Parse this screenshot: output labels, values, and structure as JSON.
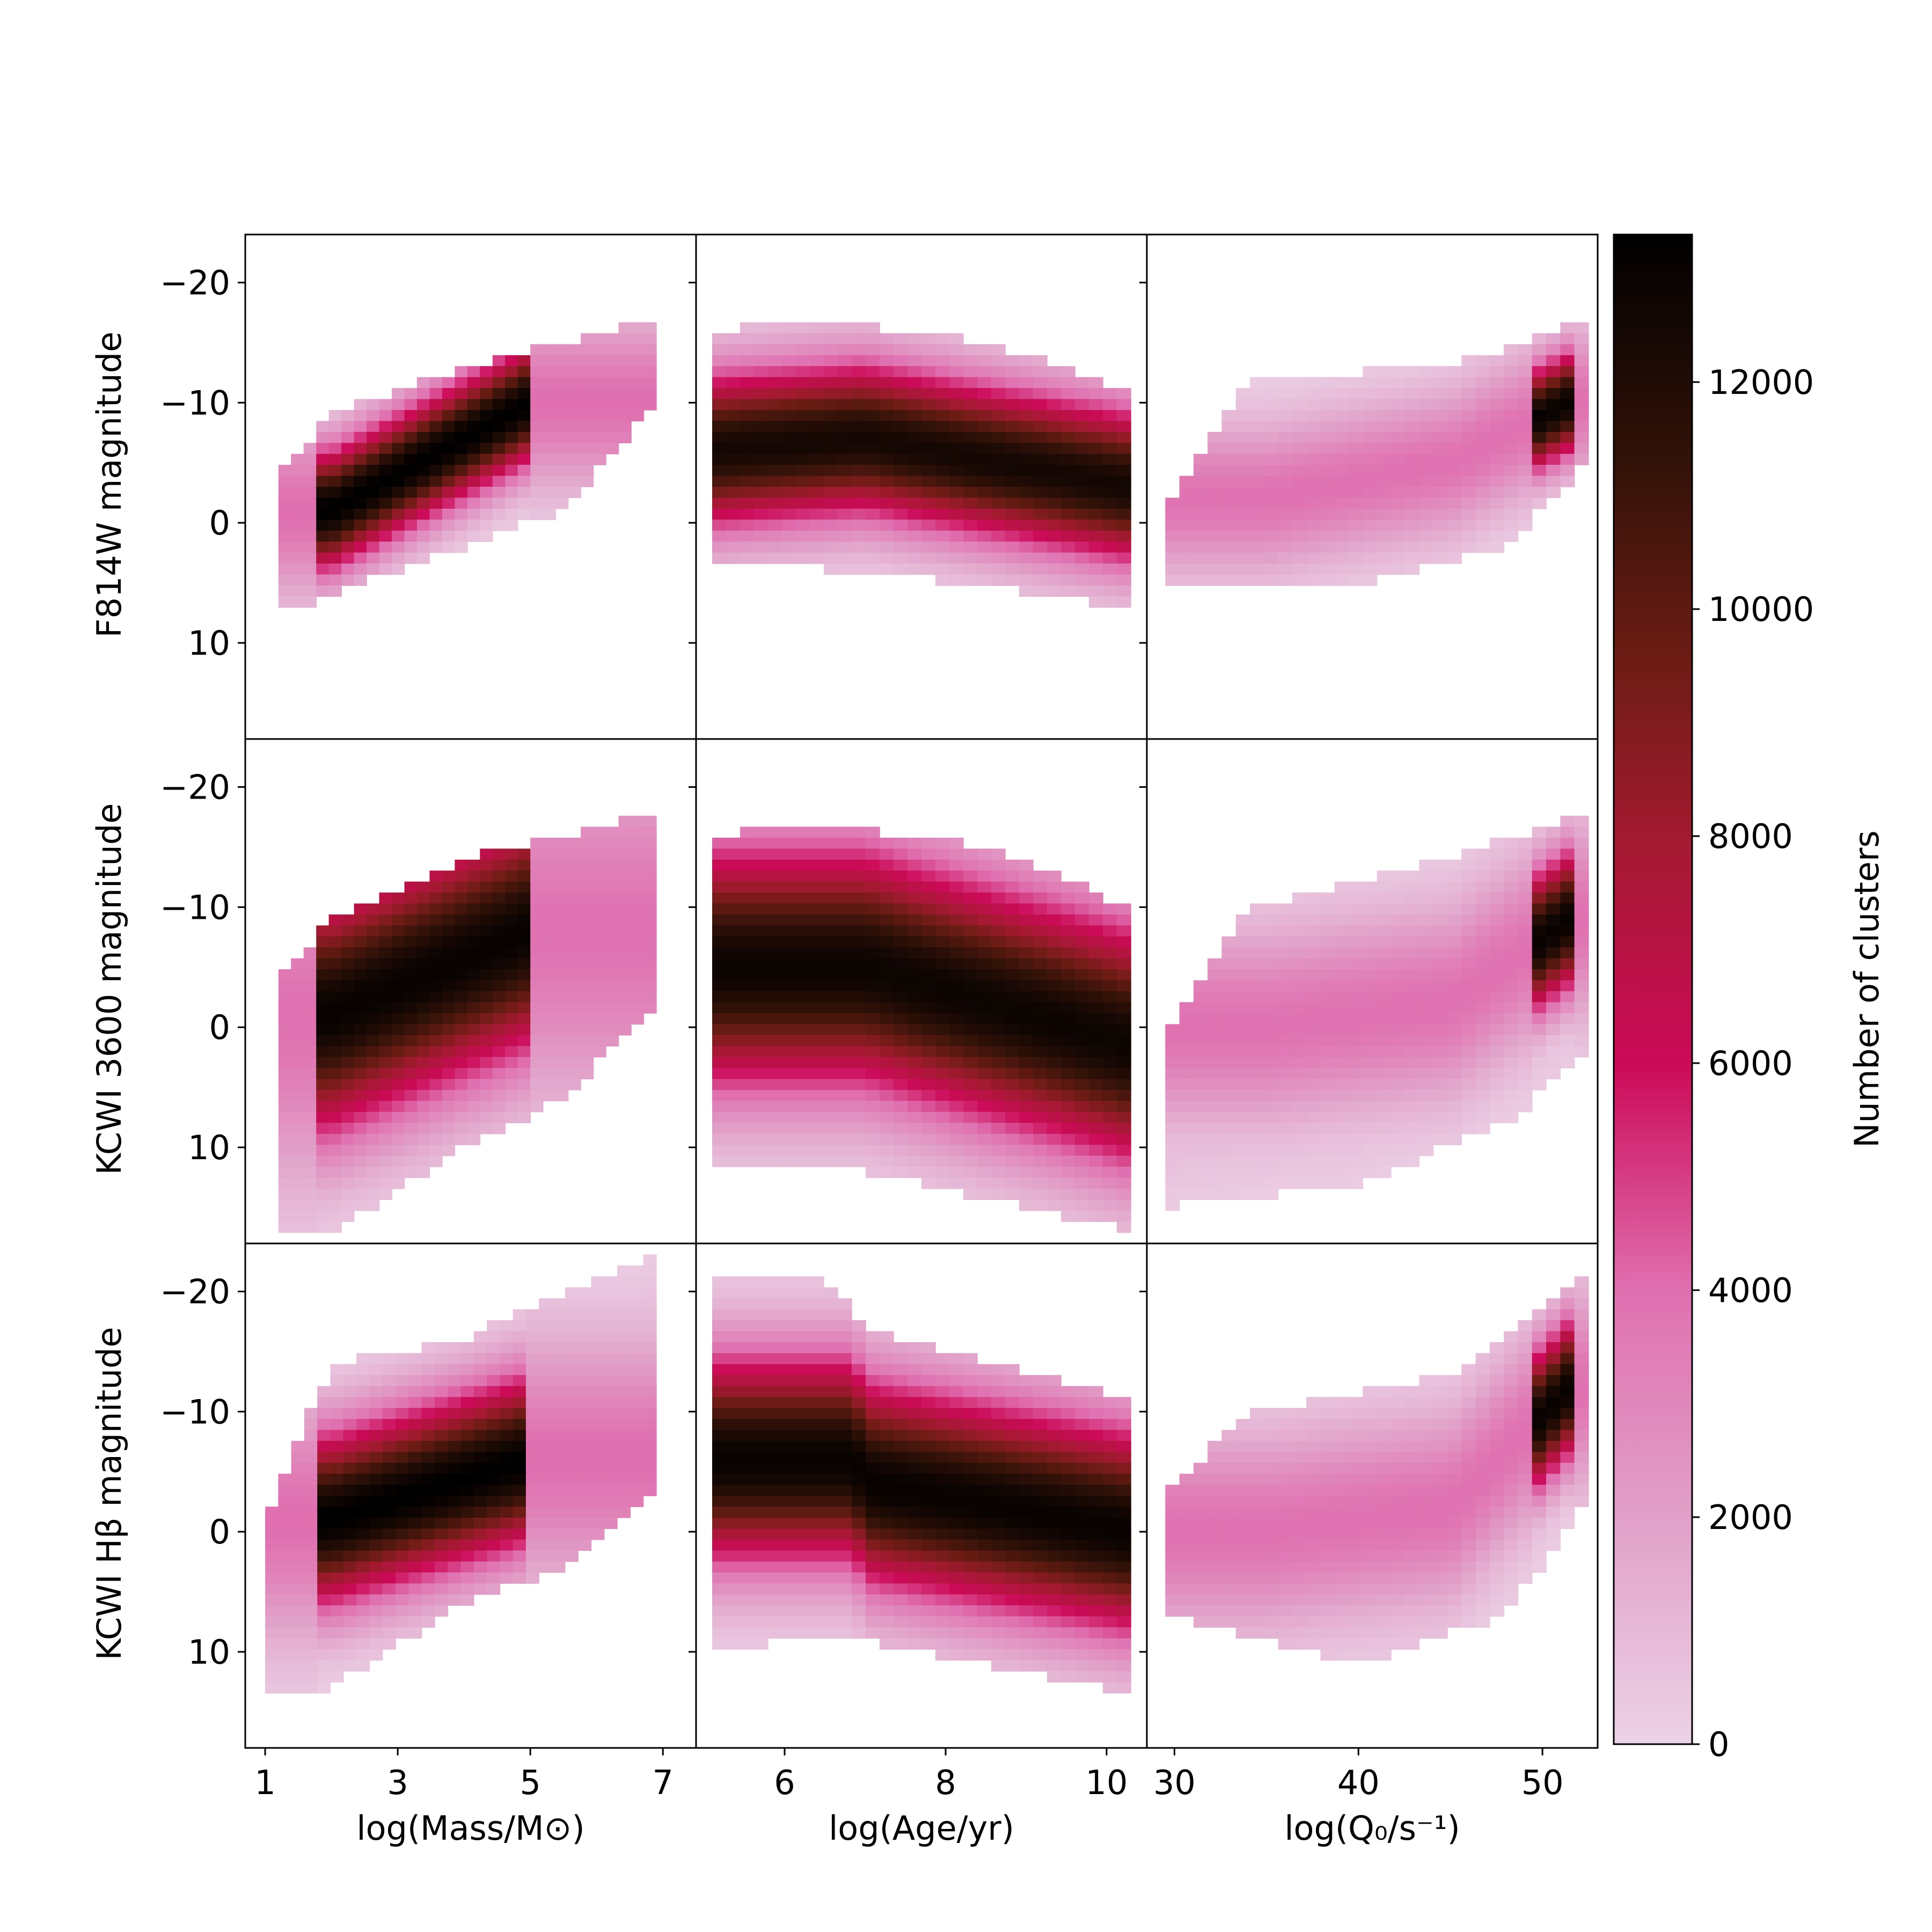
{
  "figure": {
    "colorbar_label": "Number of clusters",
    "colorbar_ticks": [
      "0",
      "2000",
      "4000",
      "6000",
      "8000",
      "10000",
      "12000"
    ],
    "row_labels": [
      "F814W magnitude",
      "KCWI 3600 magnitude",
      "KCWI Hβ magnitude"
    ],
    "col_labels": [
      "log(Mass/M⊙)",
      "log(Age/yr)",
      "log(Q₀/s⁻¹)"
    ],
    "x_ticks": [
      {
        "values": [
          1,
          3,
          5,
          7
        ],
        "labels": [
          "1",
          "3",
          "5",
          "7"
        ]
      },
      {
        "values": [
          6,
          8,
          10
        ],
        "labels": [
          "6",
          "8",
          "10"
        ]
      },
      {
        "values": [
          30,
          40,
          50
        ],
        "labels": [
          "30",
          "40",
          "50"
        ]
      }
    ],
    "y_ticks": {
      "values": [
        -20,
        -10,
        0,
        10
      ],
      "labels": [
        "−20",
        "−10",
        "0",
        "10"
      ]
    }
  },
  "chart_data": {
    "type": "heatmap",
    "colormap": "PuRd-dark (pink → magenta → brown → black)",
    "colorbar_range": [
      0,
      13300
    ],
    "ylim": [
      18,
      -24
    ],
    "xlims": [
      [
        0.7,
        7.5
      ],
      [
        4.9,
        10.5
      ],
      [
        28.5,
        53
      ]
    ],
    "panels": [
      {
        "row": 0,
        "col": 0,
        "ylabel": "F814W magnitude",
        "xlabel": "",
        "xrange": [
          1.2,
          6.9
        ],
        "ridge": [
          [
            2.0,
            -1.0
          ],
          [
            5.0,
            -10.0
          ]
        ],
        "upper": [
          [
            1.2,
            -4
          ],
          [
            2.0,
            -9
          ],
          [
            4.0,
            -13
          ],
          [
            5.5,
            -15
          ],
          [
            6.9,
            -17
          ]
        ],
        "lower": [
          [
            1.2,
            7.5
          ],
          [
            2.0,
            6
          ],
          [
            4.0,
            2
          ],
          [
            5.5,
            -1
          ],
          [
            6.9,
            -10
          ]
        ],
        "core_xrange": [
          1.8,
          5.0
        ],
        "core_width": 3.5,
        "peak": 13300
      },
      {
        "row": 0,
        "col": 1,
        "ylabel": "",
        "xlabel": "",
        "xrange": [
          5.1,
          10.3
        ],
        "ridge": [
          [
            5.1,
            -6
          ],
          [
            7.0,
            -7
          ],
          [
            10.3,
            -3
          ]
        ],
        "upper": [
          [
            5.1,
            -16
          ],
          [
            6.5,
            -17
          ],
          [
            8.5,
            -15
          ],
          [
            10.3,
            -11
          ]
        ],
        "lower": [
          [
            5.1,
            3.5
          ],
          [
            7.0,
            4
          ],
          [
            10.3,
            7
          ]
        ],
        "core_xrange": [
          5.1,
          10.3
        ],
        "core_width": 4.5,
        "peak": 12500
      },
      {
        "row": 0,
        "col": 2,
        "ylabel": "",
        "xlabel": "",
        "xrange": [
          29.5,
          52.5
        ],
        "ridge": [
          [
            35,
            -2
          ],
          [
            45,
            -5
          ],
          [
            51.5,
            -10
          ]
        ],
        "upper": [
          [
            29.5,
            -1
          ],
          [
            34,
            -12
          ],
          [
            45,
            -13
          ],
          [
            52.5,
            -17
          ]
        ],
        "lower": [
          [
            29.5,
            5
          ],
          [
            40,
            5
          ],
          [
            48,
            2
          ],
          [
            52.5,
            -5
          ]
        ],
        "core_xrange": [
          49.5,
          51.8
        ],
        "core_width": 3,
        "peak": 13000
      },
      {
        "row": 1,
        "col": 0,
        "ylabel": "KCWI 3600 magnitude",
        "xlabel": "",
        "xrange": [
          1.2,
          6.9
        ],
        "ridge": [
          [
            2.0,
            -1.0
          ],
          [
            5.0,
            -8.0
          ]
        ],
        "upper": [
          [
            1.2,
            -4
          ],
          [
            2.0,
            -9
          ],
          [
            4.0,
            -14
          ],
          [
            5.5,
            -16
          ],
          [
            6.9,
            -18
          ]
        ],
        "lower": [
          [
            1.2,
            17
          ],
          [
            2.0,
            17
          ],
          [
            4.0,
            10
          ],
          [
            5.5,
            6
          ],
          [
            6.9,
            -2
          ]
        ],
        "core_xrange": [
          1.8,
          5.0
        ],
        "core_width": 7,
        "peak": 13000
      },
      {
        "row": 1,
        "col": 1,
        "ylabel": "",
        "xlabel": "",
        "xrange": [
          5.1,
          10.3
        ],
        "ridge": [
          [
            5.1,
            -5
          ],
          [
            7.0,
            -5
          ],
          [
            10.3,
            1.5
          ]
        ],
        "upper": [
          [
            5.1,
            -16
          ],
          [
            6.5,
            -17
          ],
          [
            8.5,
            -15
          ],
          [
            10.3,
            -10
          ]
        ],
        "lower": [
          [
            5.1,
            12
          ],
          [
            7.0,
            12
          ],
          [
            10.3,
            17
          ]
        ],
        "core_xrange": [
          5.1,
          10.3
        ],
        "core_width": 7,
        "peak": 12800
      },
      {
        "row": 1,
        "col": 2,
        "ylabel": "",
        "xlabel": "",
        "xrange": [
          29.5,
          52.5
        ],
        "ridge": [
          [
            35,
            0
          ],
          [
            45,
            -2
          ],
          [
            51.5,
            -9
          ]
        ],
        "upper": [
          [
            29.5,
            1
          ],
          [
            34,
            -10
          ],
          [
            45,
            -14
          ],
          [
            52.5,
            -18
          ]
        ],
        "lower": [
          [
            29.5,
            15
          ],
          [
            40,
            13
          ],
          [
            48,
            8
          ],
          [
            52.5,
            2
          ]
        ],
        "core_xrange": [
          49.5,
          51.8
        ],
        "core_width": 4,
        "peak": 13000
      },
      {
        "row": 2,
        "col": 0,
        "ylabel": "KCWI Hβ magnitude",
        "xlabel": "log(Mass/M⊙)",
        "xrange": [
          1.0,
          6.9
        ],
        "ridge": [
          [
            2.0,
            -1.0
          ],
          [
            5.0,
            -6.0
          ]
        ],
        "upper": [
          [
            1.0,
            -1
          ],
          [
            2.0,
            -14
          ],
          [
            4.0,
            -16
          ],
          [
            5.5,
            -20
          ],
          [
            6.9,
            -23
          ]
        ],
        "lower": [
          [
            1.0,
            13
          ],
          [
            2.0,
            13
          ],
          [
            4.0,
            6
          ],
          [
            5.5,
            3
          ],
          [
            6.9,
            -3
          ]
        ],
        "core_xrange": [
          1.8,
          5.0
        ],
        "core_width": 5,
        "peak": 13300
      },
      {
        "row": 2,
        "col": 1,
        "ylabel": "",
        "xlabel": "log(Age/yr)",
        "xrange": [
          5.1,
          10.3
        ],
        "ridge": [
          [
            5.1,
            -6
          ],
          [
            6.8,
            -6
          ],
          [
            7.1,
            -4
          ],
          [
            10.3,
            0
          ]
        ],
        "upper": [
          [
            5.1,
            -21
          ],
          [
            6.5,
            -21
          ],
          [
            7.0,
            -17
          ],
          [
            10.3,
            -11
          ]
        ],
        "lower": [
          [
            5.1,
            9.5
          ],
          [
            7.0,
            9
          ],
          [
            10.3,
            13.5
          ]
        ],
        "core_xrange": [
          5.1,
          10.3
        ],
        "core_width": 6,
        "peak": 13000
      },
      {
        "row": 2,
        "col": 2,
        "ylabel": "",
        "xlabel": "log(Q₀/s⁻¹)",
        "xrange": [
          29.5,
          52.5
        ],
        "ridge": [
          [
            35,
            0
          ],
          [
            45,
            -2
          ],
          [
            51.5,
            -12
          ]
        ],
        "upper": [
          [
            29.5,
            -3
          ],
          [
            34,
            -10
          ],
          [
            45,
            -13
          ],
          [
            52.5,
            -22
          ]
        ],
        "lower": [
          [
            29.5,
            7
          ],
          [
            40,
            11
          ],
          [
            48,
            7
          ],
          [
            52.5,
            -3
          ]
        ],
        "core_xrange": [
          49.5,
          51.8
        ],
        "core_width": 4,
        "peak": 13000
      }
    ]
  }
}
